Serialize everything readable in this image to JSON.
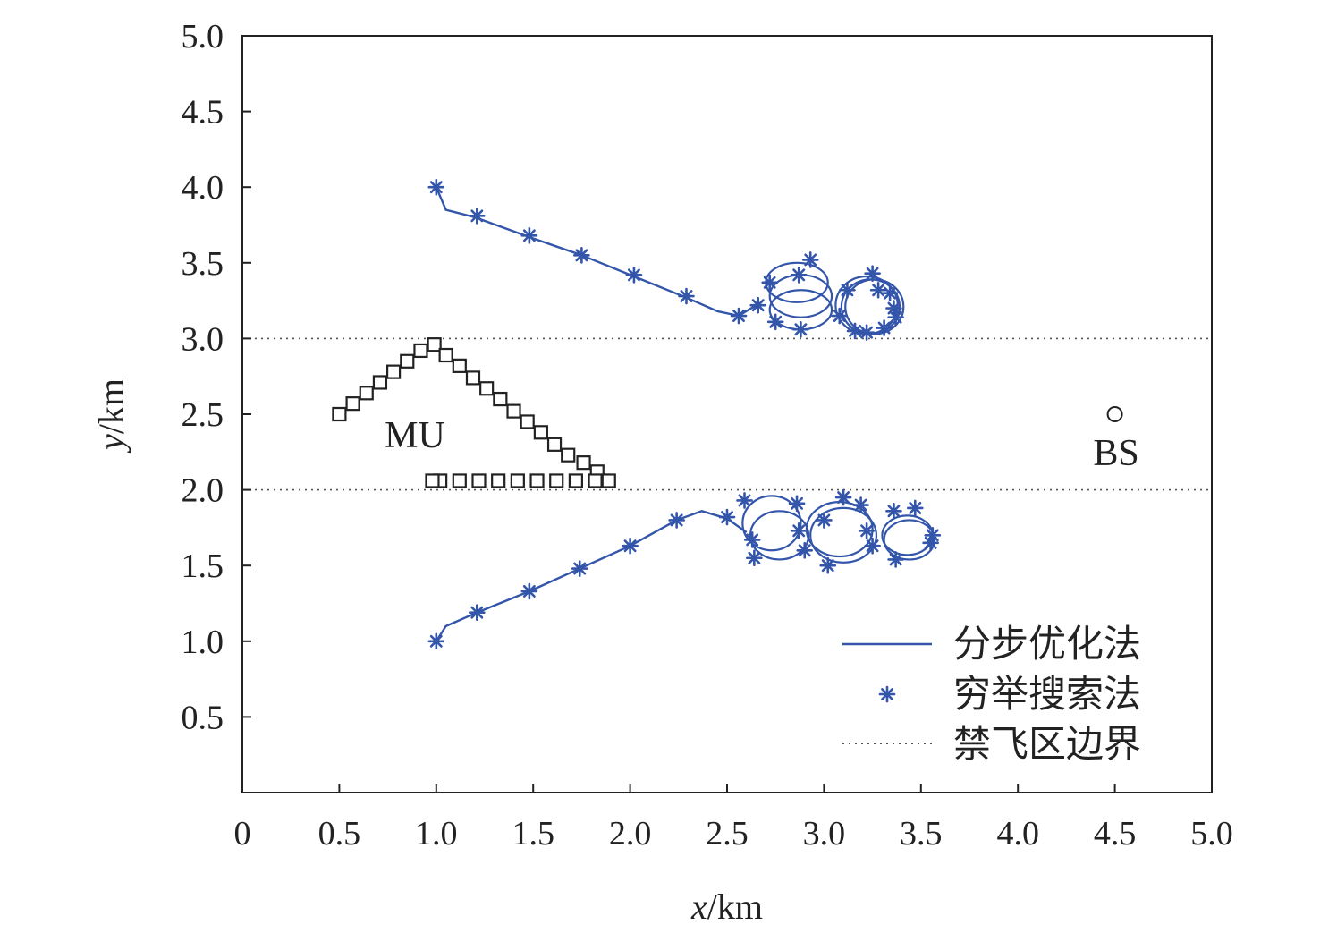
{
  "chart_data": {
    "type": "line",
    "xlabel_italic": "x",
    "xlabel_unit": "/km",
    "ylabel_italic": "y",
    "ylabel_unit": "/km",
    "xlim": [
      0,
      5
    ],
    "ylim": [
      0,
      5
    ],
    "x_ticks": [
      "0",
      "0.5",
      "1.0",
      "1.5",
      "2.0",
      "2.5",
      "3.0",
      "3.5",
      "4.0",
      "4.5",
      "5.0"
    ],
    "y_ticks": [
      "0.5",
      "1.0",
      "1.5",
      "2.0",
      "2.5",
      "3.0",
      "3.5",
      "4.0",
      "4.5",
      "5.0"
    ],
    "grid": false,
    "legend_position": "bottom-right",
    "colors": {
      "trajectory": "#3355aa",
      "mu": "#222222",
      "boundary": "#555555"
    },
    "legend": [
      {
        "label": "分步优化法",
        "style": "line"
      },
      {
        "label": "穷举搜索法",
        "style": "star"
      },
      {
        "label": "禁飞区边界",
        "style": "dotted"
      }
    ],
    "annotations": {
      "mu": "MU",
      "bs": "BS"
    },
    "no_fly_boundaries": [
      2.0,
      3.0
    ],
    "bs": {
      "x": 4.5,
      "y": 2.5
    },
    "mu_path": [
      [
        0.5,
        2.5
      ],
      [
        0.57,
        2.57
      ],
      [
        0.64,
        2.64
      ],
      [
        0.71,
        2.71
      ],
      [
        0.78,
        2.78
      ],
      [
        0.85,
        2.85
      ],
      [
        0.92,
        2.92
      ],
      [
        0.99,
        2.96
      ],
      [
        1.05,
        2.89
      ],
      [
        1.12,
        2.82
      ],
      [
        1.19,
        2.74
      ],
      [
        1.26,
        2.67
      ],
      [
        1.33,
        2.6
      ],
      [
        1.4,
        2.52
      ],
      [
        1.47,
        2.45
      ],
      [
        1.54,
        2.38
      ],
      [
        1.61,
        2.3
      ],
      [
        1.68,
        2.23
      ],
      [
        1.76,
        2.18
      ],
      [
        1.83,
        2.12
      ],
      [
        1.89,
        2.06
      ],
      [
        1.82,
        2.06
      ],
      [
        1.72,
        2.06
      ],
      [
        1.62,
        2.06
      ],
      [
        1.52,
        2.06
      ],
      [
        1.42,
        2.06
      ],
      [
        1.32,
        2.06
      ],
      [
        1.22,
        2.06
      ],
      [
        1.12,
        2.06
      ],
      [
        1.02,
        2.06
      ],
      [
        0.98,
        2.06
      ]
    ],
    "uav1": {
      "path": [
        [
          1.0,
          4.0
        ],
        [
          1.05,
          3.85
        ],
        [
          1.2,
          3.8
        ],
        [
          1.48,
          3.67
        ],
        [
          1.75,
          3.55
        ],
        [
          2.02,
          3.41
        ],
        [
          2.29,
          3.27
        ],
        [
          2.45,
          3.18
        ],
        [
          2.56,
          3.15
        ],
        [
          2.65,
          3.22
        ]
      ],
      "loops": [
        {
          "cx": 2.86,
          "cy": 3.37,
          "rx": 0.16,
          "ry": 0.13
        },
        {
          "cx": 2.88,
          "cy": 3.28,
          "rx": 0.16,
          "ry": 0.14
        },
        {
          "cx": 2.88,
          "cy": 3.19,
          "rx": 0.16,
          "ry": 0.13
        },
        {
          "cx": 3.22,
          "cy": 3.22,
          "rx": 0.16,
          "ry": 0.19
        },
        {
          "cx": 3.24,
          "cy": 3.21,
          "rx": 0.15,
          "ry": 0.18
        },
        {
          "cx": 3.26,
          "cy": 3.21,
          "rx": 0.15,
          "ry": 0.18
        }
      ],
      "stars": [
        [
          1.0,
          4.0
        ],
        [
          1.21,
          3.81
        ],
        [
          1.48,
          3.68
        ],
        [
          1.75,
          3.55
        ],
        [
          2.02,
          3.42
        ],
        [
          2.29,
          3.28
        ],
        [
          2.56,
          3.15
        ],
        [
          2.66,
          3.22
        ],
        [
          2.72,
          3.37
        ],
        [
          2.75,
          3.11
        ],
        [
          2.87,
          3.42
        ],
        [
          2.88,
          3.06
        ],
        [
          2.93,
          3.52
        ],
        [
          3.08,
          3.15
        ],
        [
          3.12,
          3.32
        ],
        [
          3.16,
          3.05
        ],
        [
          3.22,
          3.04
        ],
        [
          3.25,
          3.43
        ],
        [
          3.28,
          3.32
        ],
        [
          3.31,
          3.07
        ],
        [
          3.34,
          3.3
        ],
        [
          3.36,
          3.2
        ],
        [
          3.37,
          3.14
        ]
      ]
    },
    "uav2": {
      "path": [
        [
          1.0,
          1.0
        ],
        [
          1.05,
          1.1
        ],
        [
          1.21,
          1.19
        ],
        [
          1.48,
          1.33
        ],
        [
          1.74,
          1.48
        ],
        [
          2.0,
          1.63
        ],
        [
          2.24,
          1.8
        ],
        [
          2.37,
          1.86
        ],
        [
          2.5,
          1.81
        ],
        [
          2.6,
          1.72
        ]
      ],
      "loops": [
        {
          "cx": 2.73,
          "cy": 1.78,
          "rx": 0.15,
          "ry": 0.18
        },
        {
          "cx": 2.77,
          "cy": 1.7,
          "rx": 0.15,
          "ry": 0.16
        },
        {
          "cx": 3.08,
          "cy": 1.74,
          "rx": 0.17,
          "ry": 0.18
        },
        {
          "cx": 3.1,
          "cy": 1.7,
          "rx": 0.17,
          "ry": 0.18
        },
        {
          "cx": 3.43,
          "cy": 1.7,
          "rx": 0.13,
          "ry": 0.13
        },
        {
          "cx": 3.44,
          "cy": 1.67,
          "rx": 0.13,
          "ry": 0.13
        }
      ],
      "stars": [
        [
          1.0,
          1.0
        ],
        [
          1.21,
          1.19
        ],
        [
          1.48,
          1.33
        ],
        [
          1.74,
          1.48
        ],
        [
          2.0,
          1.63
        ],
        [
          2.24,
          1.8
        ],
        [
          2.5,
          1.82
        ],
        [
          2.59,
          1.93
        ],
        [
          2.63,
          1.67
        ],
        [
          2.64,
          1.55
        ],
        [
          2.86,
          1.91
        ],
        [
          2.87,
          1.73
        ],
        [
          2.9,
          1.6
        ],
        [
          3.0,
          1.8
        ],
        [
          3.02,
          1.5
        ],
        [
          3.1,
          1.95
        ],
        [
          3.19,
          1.9
        ],
        [
          3.22,
          1.73
        ],
        [
          3.25,
          1.63
        ],
        [
          3.36,
          1.86
        ],
        [
          3.37,
          1.54
        ],
        [
          3.47,
          1.88
        ],
        [
          3.56,
          1.7
        ],
        [
          3.55,
          1.65
        ]
      ]
    }
  }
}
